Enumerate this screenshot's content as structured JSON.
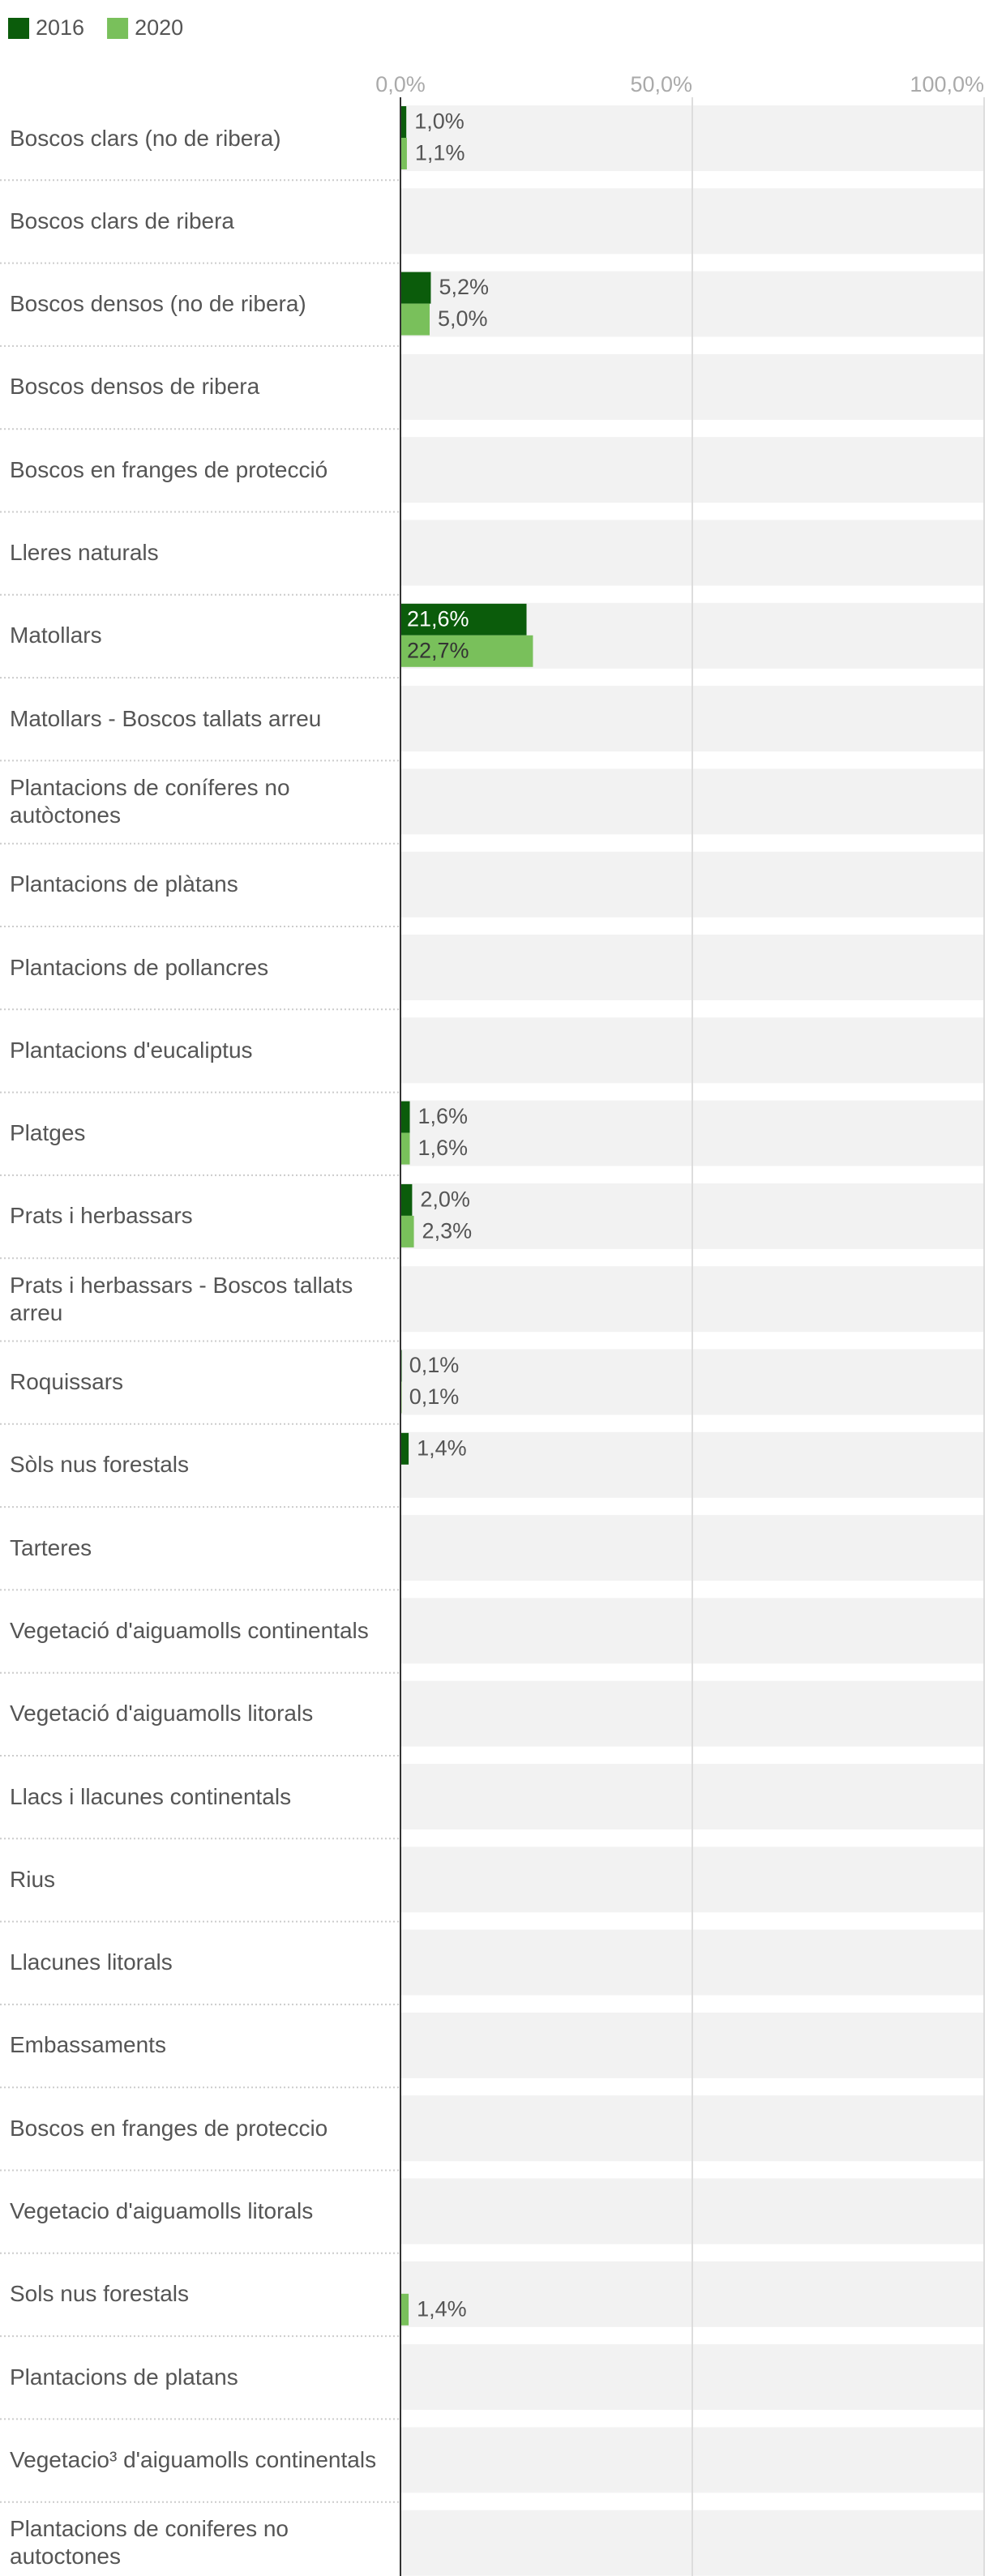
{
  "chart_data": {
    "type": "bar",
    "orientation": "horizontal",
    "categories": [
      "Boscos clars (no de ribera)",
      "Boscos clars de ribera",
      "Boscos densos (no de ribera)",
      "Boscos densos de ribera",
      "Boscos en franges de protecció",
      "Lleres naturals",
      "Matollars",
      "Matollars - Boscos tallats arreu",
      "Plantacions de coníferes no autòctones",
      "Plantacions de plàtans",
      "Plantacions de pollancres",
      "Plantacions d'eucaliptus",
      "Platges",
      "Prats i herbassars",
      "Prats i herbassars - Boscos tallats arreu",
      "Roquissars",
      "Sòls nus forestals",
      "Tarteres",
      "Vegetació d'aiguamolls continentals",
      "Vegetació d'aiguamolls litorals",
      "Llacs i llacunes continentals",
      "Rius",
      "Llacunes litorals",
      "Embassaments",
      "Boscos en franges de proteccio",
      "Vegetacio d'aiguamolls litorals",
      "Sols nus forestals",
      "Plantacions de platans",
      "Vegetacio³ d'aiguamolls continentals",
      "Plantacions de coniferes no autoctones"
    ],
    "series": [
      {
        "name": "2016",
        "color": "#0b5c0b",
        "values": [
          1.0,
          null,
          5.2,
          null,
          null,
          null,
          21.6,
          null,
          null,
          null,
          null,
          null,
          1.6,
          2.0,
          null,
          0.1,
          1.4,
          null,
          null,
          null,
          null,
          null,
          null,
          null,
          null,
          null,
          null,
          null,
          null,
          null
        ],
        "value_labels": [
          "1,0%",
          null,
          "5,2%",
          null,
          null,
          null,
          "21,6%",
          null,
          null,
          null,
          null,
          null,
          "1,6%",
          "2,0%",
          null,
          "0,1%",
          "1,4%",
          null,
          null,
          null,
          null,
          null,
          null,
          null,
          null,
          null,
          null,
          null,
          null,
          null
        ]
      },
      {
        "name": "2020",
        "color": "#79c05b",
        "values": [
          1.1,
          null,
          5.0,
          null,
          null,
          null,
          22.7,
          null,
          null,
          null,
          null,
          null,
          1.6,
          2.3,
          null,
          0.1,
          null,
          null,
          null,
          null,
          null,
          null,
          null,
          null,
          null,
          null,
          1.4,
          null,
          null,
          null
        ],
        "value_labels": [
          "1,1%",
          null,
          "5,0%",
          null,
          null,
          null,
          "22,7%",
          null,
          null,
          null,
          null,
          null,
          "1,6%",
          "2,3%",
          null,
          "0,1%",
          null,
          null,
          null,
          null,
          null,
          null,
          null,
          null,
          null,
          null,
          "1,4%",
          null,
          null,
          null
        ]
      }
    ],
    "xlim": [
      0,
      100
    ],
    "xticks": [
      {
        "value": 0,
        "label": "0,0%"
      },
      {
        "value": 50,
        "label": "50,0%"
      },
      {
        "value": 100,
        "label": "100,0%"
      }
    ],
    "grid": true,
    "legend": "top-left"
  }
}
